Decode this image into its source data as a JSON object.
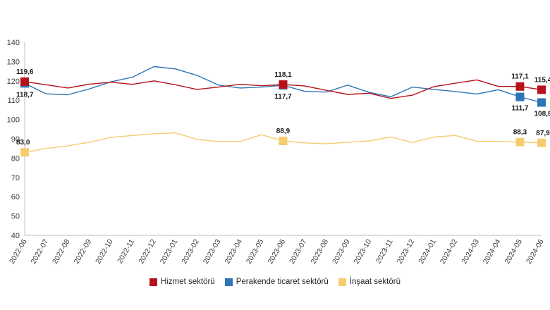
{
  "chart_data": {
    "type": "line",
    "title": "",
    "xlabel": "",
    "ylabel": "",
    "ylim": [
      40,
      140
    ],
    "yticks": [
      40,
      50,
      60,
      70,
      80,
      90,
      100,
      110,
      120,
      130,
      140
    ],
    "grid": false,
    "legend_position": "bottom",
    "categories": [
      "2022-06",
      "2022-07",
      "2022-08",
      "2022-09",
      "2022-10",
      "2022-11",
      "2022-12",
      "2023-01",
      "2023-02",
      "2023-03",
      "2023-04",
      "2023-05",
      "2023-06",
      "2023-07",
      "2023-08",
      "2023-09",
      "2023-10",
      "2023-11",
      "2023-12",
      "2024-01",
      "2024-02",
      "2024-03",
      "2024-04",
      "2024-05",
      "2024-06"
    ],
    "series": [
      {
        "name": "Hizmet sektörü",
        "color": "#b5121b",
        "values": [
          119.6,
          118.0,
          116.3,
          118.3,
          119.3,
          118.2,
          120.0,
          118.0,
          115.6,
          116.8,
          118.2,
          117.5,
          118.1,
          117.4,
          115.1,
          113.0,
          113.6,
          110.9,
          112.6,
          117.0,
          118.8,
          120.5,
          117.1,
          117.1,
          115.4
        ],
        "labels": [
          {
            "index": 0,
            "text": "119,6",
            "pos": "above"
          },
          {
            "index": 12,
            "text": "118,1",
            "pos": "above"
          },
          {
            "index": 23,
            "text": "117,1",
            "pos": "above"
          },
          {
            "index": 24,
            "text": "115,4",
            "pos": "above"
          }
        ]
      },
      {
        "name": "Perakende ticaret sektörü",
        "color": "#2e75b6",
        "values": [
          118.7,
          113.3,
          112.8,
          115.8,
          119.5,
          121.9,
          127.4,
          126.2,
          122.9,
          117.8,
          116.3,
          116.8,
          117.7,
          114.6,
          114.2,
          117.8,
          114.0,
          111.8,
          116.8,
          115.6,
          114.5,
          113.2,
          115.4,
          111.7,
          108.8
        ],
        "labels": [
          {
            "index": 0,
            "text": "118,7",
            "pos": "below"
          },
          {
            "index": 12,
            "text": "117,7",
            "pos": "below"
          },
          {
            "index": 23,
            "text": "111,7",
            "pos": "below"
          },
          {
            "index": 24,
            "text": "108,8",
            "pos": "below"
          }
        ]
      },
      {
        "name": "İnşaat sektörü",
        "color": "#f5cc6f",
        "values": [
          83.0,
          85.0,
          86.3,
          88.2,
          90.7,
          91.7,
          92.6,
          93.1,
          89.7,
          88.5,
          88.5,
          92.1,
          88.9,
          87.9,
          87.4,
          88.2,
          88.9,
          90.9,
          88.1,
          90.9,
          91.7,
          88.7,
          88.6,
          88.3,
          87.9
        ],
        "labels": [
          {
            "index": 0,
            "text": "83,0",
            "pos": "above"
          },
          {
            "index": 12,
            "text": "88,9",
            "pos": "above"
          },
          {
            "index": 23,
            "text": "88,3",
            "pos": "above"
          },
          {
            "index": 24,
            "text": "87,9",
            "pos": "above"
          }
        ]
      }
    ],
    "markers": [
      0,
      12,
      23,
      24
    ]
  }
}
